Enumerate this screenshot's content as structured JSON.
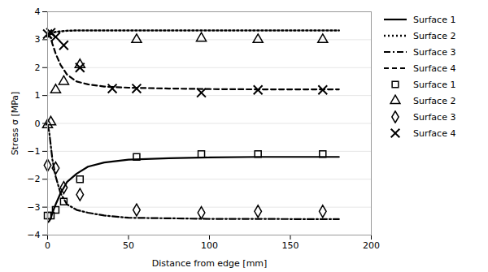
{
  "chart_data": {
    "type": "line",
    "xlabel": "Distance from edge [mm]",
    "ylabel": "Stress σ [MPa]",
    "xlim": [
      0,
      200
    ],
    "ylim": [
      -4,
      4
    ],
    "xticks": [
      0,
      50,
      100,
      150,
      200
    ],
    "yticks": [
      -4,
      -3,
      -2,
      -1,
      0,
      1,
      2,
      3,
      4
    ],
    "grid": "y",
    "legend": "right",
    "series": [
      {
        "name": "Surface 1",
        "type": "line",
        "line_style": "solid",
        "color": "#000000",
        "x": [
          0,
          1,
          2,
          3,
          5,
          8,
          12,
          18,
          25,
          35,
          50,
          75,
          100,
          130,
          160,
          180
        ],
        "values": [
          -3.55,
          -3.5,
          -3.4,
          -3.2,
          -2.9,
          -2.5,
          -2.1,
          -1.8,
          -1.55,
          -1.4,
          -1.3,
          -1.25,
          -1.22,
          -1.2,
          -1.2,
          -1.2
        ]
      },
      {
        "name": "Surface 2",
        "type": "line",
        "line_style": "dotted",
        "color": "#000000",
        "x": [
          0,
          1,
          2,
          3,
          5,
          8,
          12,
          18,
          25,
          35,
          50,
          75,
          100,
          130,
          160,
          180
        ],
        "values": [
          3.1,
          3.15,
          3.2,
          3.25,
          3.28,
          3.3,
          3.32,
          3.33,
          3.33,
          3.33,
          3.33,
          3.33,
          3.33,
          3.33,
          3.33,
          3.33
        ]
      },
      {
        "name": "Surface 3",
        "type": "line",
        "line_style": "dashdot",
        "color": "#000000",
        "x": [
          0,
          1,
          2,
          3,
          5,
          8,
          12,
          18,
          25,
          35,
          50,
          75,
          100,
          130,
          160,
          180
        ],
        "values": [
          -0.05,
          -0.3,
          -0.8,
          -1.3,
          -1.9,
          -2.5,
          -2.9,
          -3.1,
          -3.2,
          -3.3,
          -3.38,
          -3.4,
          -3.42,
          -3.42,
          -3.43,
          -3.43
        ]
      },
      {
        "name": "Surface 4",
        "type": "line",
        "line_style": "dashed",
        "color": "#000000",
        "x": [
          0,
          1,
          2,
          3,
          5,
          8,
          12,
          18,
          25,
          35,
          50,
          75,
          100,
          130,
          160,
          180
        ],
        "values": [
          3.2,
          3.15,
          3.05,
          2.85,
          2.5,
          2.1,
          1.75,
          1.5,
          1.4,
          1.32,
          1.28,
          1.25,
          1.23,
          1.22,
          1.22,
          1.22
        ]
      },
      {
        "name": "Surface 1",
        "type": "scatter",
        "marker": "square",
        "color": "#000000",
        "x": [
          0,
          2,
          5,
          10,
          20,
          55,
          95,
          130,
          170
        ],
        "values": [
          -3.3,
          -3.3,
          -3.1,
          -2.8,
          -2.0,
          -1.2,
          -1.1,
          -1.1,
          -1.1
        ]
      },
      {
        "name": "Surface 2",
        "type": "scatter",
        "marker": "triangle",
        "color": "#000000",
        "x": [
          0,
          2,
          5,
          10,
          20,
          55,
          95,
          130,
          170
        ],
        "values": [
          -0.05,
          0.05,
          1.2,
          1.5,
          2.1,
          3.0,
          3.05,
          3.0,
          3.0
        ]
      },
      {
        "name": "Surface 3",
        "type": "scatter",
        "marker": "diamond",
        "color": "#000000",
        "x": [
          0,
          5,
          10,
          20,
          55,
          95,
          130,
          170
        ],
        "values": [
          -1.5,
          -1.6,
          -2.3,
          -2.55,
          -3.1,
          -3.2,
          -3.15,
          -3.15
        ]
      },
      {
        "name": "Surface 4",
        "type": "scatter",
        "marker": "x",
        "color": "#000000",
        "x": [
          0,
          2,
          5,
          10,
          20,
          40,
          55,
          95,
          130,
          170
        ],
        "values": [
          3.2,
          3.25,
          3.1,
          2.8,
          2.0,
          1.25,
          1.25,
          1.1,
          1.2,
          1.2
        ]
      }
    ]
  }
}
